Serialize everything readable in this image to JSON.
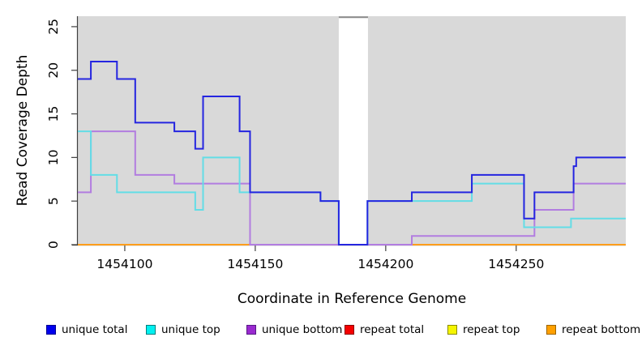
{
  "figure": {
    "background": "#ffffff",
    "plot_background": "#d9d9d9",
    "axis_color": "#404040",
    "tick_label_color": "#000000"
  },
  "gap_region": {
    "x_start": 1454182,
    "x_end": 1454193.2,
    "fill": "#ffffff",
    "top_border_color": "#8a8a8a",
    "note": "white no-data band in plot background"
  },
  "chart_data": {
    "type": "line",
    "step": true,
    "title": "",
    "xlabel": "Coordinate in Reference Genome",
    "ylabel": "Read Coverage Depth",
    "xlim": [
      1454082,
      1454292
    ],
    "ylim": [
      0,
      26.2
    ],
    "grid": false,
    "x_ticks": [
      "1454100",
      "1454150",
      "1454200",
      "1454250"
    ],
    "x_tick_values": [
      1454100,
      1454150,
      1454200,
      1454250
    ],
    "y_ticks": [
      "0",
      "5",
      "10",
      "15",
      "20",
      "25"
    ],
    "y_tick_values": [
      0,
      5,
      10,
      15,
      20,
      25
    ],
    "legend_position": "bottom",
    "draw_order": [
      "repeat total",
      "repeat top",
      "repeat bottom",
      "unique bottom",
      "unique top",
      "unique total"
    ],
    "series": [
      {
        "name": "unique total",
        "color": "#2525e0",
        "points": [
          [
            1454082,
            19
          ],
          [
            1454087,
            21
          ],
          [
            1454097,
            19
          ],
          [
            1454104,
            14
          ],
          [
            1454119,
            13
          ],
          [
            1454127,
            11
          ],
          [
            1454130,
            17
          ],
          [
            1454144,
            13
          ],
          [
            1454148,
            6
          ],
          [
            1454175,
            5
          ],
          [
            1454182,
            0
          ],
          [
            1454193,
            5
          ],
          [
            1454210,
            6
          ],
          [
            1454233,
            8
          ],
          [
            1454253,
            3
          ],
          [
            1454257,
            6
          ],
          [
            1454272,
            9
          ],
          [
            1454273,
            10
          ],
          [
            1454292,
            10
          ]
        ]
      },
      {
        "name": "unique top",
        "color": "#63dde6",
        "points": [
          [
            1454082,
            13
          ],
          [
            1454087,
            8
          ],
          [
            1454097,
            6
          ],
          [
            1454127,
            4
          ],
          [
            1454130,
            10
          ],
          [
            1454144,
            6
          ],
          [
            1454175,
            5
          ],
          [
            1454182,
            0
          ],
          [
            1454193,
            5
          ],
          [
            1454233,
            7
          ],
          [
            1454253,
            2
          ],
          [
            1454271,
            3
          ],
          [
            1454292,
            3
          ]
        ]
      },
      {
        "name": "unique bottom",
        "color": "#b27de0",
        "points": [
          [
            1454082,
            6
          ],
          [
            1454087,
            13
          ],
          [
            1454104,
            8
          ],
          [
            1454119,
            7
          ],
          [
            1454148,
            0
          ],
          [
            1454210,
            1
          ],
          [
            1454257,
            4
          ],
          [
            1454272,
            7
          ],
          [
            1454292,
            7
          ]
        ]
      },
      {
        "name": "repeat total",
        "color": "#e03030",
        "points": [
          [
            1454082,
            0
          ],
          [
            1454292,
            0
          ]
        ]
      },
      {
        "name": "repeat top",
        "color": "#f0f040",
        "points": [
          [
            1454082,
            0
          ],
          [
            1454292,
            0
          ]
        ]
      },
      {
        "name": "repeat bottom",
        "color": "#ff9e1c",
        "points": [
          [
            1454082,
            0
          ],
          [
            1454292,
            0
          ]
        ]
      }
    ]
  },
  "legend": {
    "items": [
      {
        "label": "unique total",
        "fill": "#0000ee",
        "border": "#000090"
      },
      {
        "label": "unique top",
        "fill": "#00f0f0",
        "border": "#007d7d"
      },
      {
        "label": "unique bottom",
        "fill": "#9a2ad0",
        "border": "#571a85"
      },
      {
        "label": "repeat total",
        "fill": "#f50000",
        "border": "#8b0000"
      },
      {
        "label": "repeat top",
        "fill": "#f5f500",
        "border": "#8b8b00"
      },
      {
        "label": "repeat bottom",
        "fill": "#ffa000",
        "border": "#9c6400"
      }
    ]
  }
}
